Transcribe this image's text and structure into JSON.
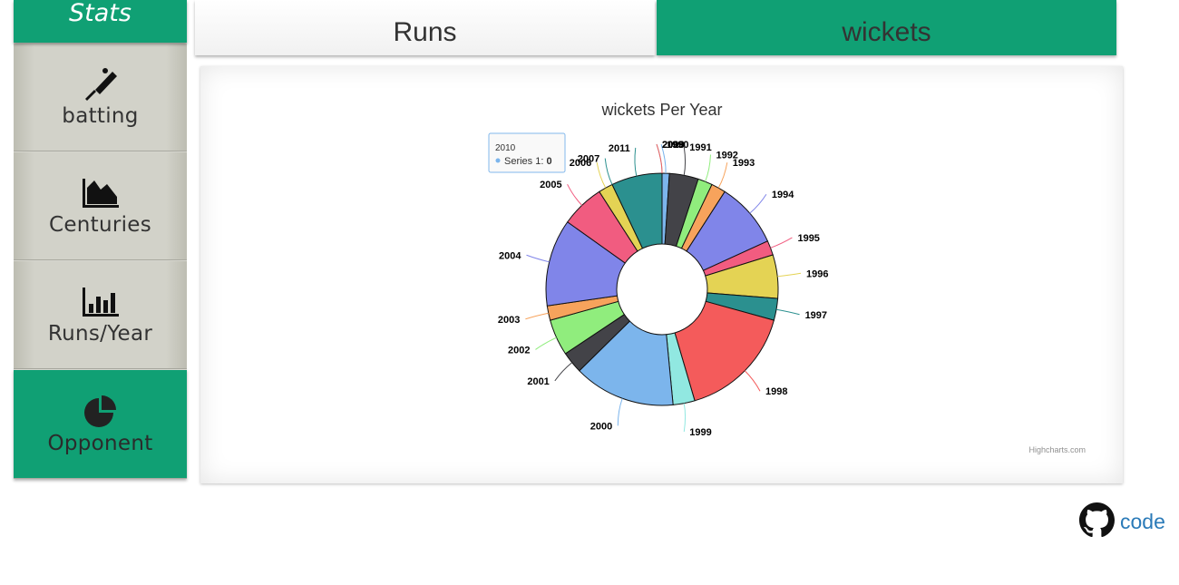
{
  "sidebar": {
    "title": "Stats",
    "items": [
      {
        "label": "batting",
        "icon": "cricket-bat-icon",
        "active": false
      },
      {
        "label": "Centuries",
        "icon": "area-chart-icon",
        "active": false
      },
      {
        "label": "Runs/Year",
        "icon": "bar-chart-icon",
        "active": false
      },
      {
        "label": "Opponent",
        "icon": "pie-chart-icon",
        "active": true
      }
    ]
  },
  "tabs": [
    {
      "label": "Runs",
      "active": false
    },
    {
      "label": "wickets",
      "active": true
    }
  ],
  "colors": {
    "accent": "#10a074"
  },
  "chart_data": {
    "type": "pie",
    "title": "wickets Per Year",
    "donut": true,
    "series_name": "Series 1",
    "credits": "Highcharts.com",
    "categories": [
      "1990",
      "1991",
      "1992",
      "1993",
      "1994",
      "1995",
      "1996",
      "1997",
      "1998",
      "1999",
      "2000",
      "2001",
      "2002",
      "2003",
      "2004",
      "2005",
      "2006",
      "2007",
      "2011",
      "2010",
      "2009",
      "2008"
    ],
    "values": [
      1,
      4,
      2,
      2,
      9,
      2,
      6,
      3,
      16,
      3,
      14,
      3,
      5,
      2,
      12,
      6,
      2,
      0,
      7,
      0,
      0,
      0
    ],
    "slice_colors": [
      "#7cb5ec",
      "#434348",
      "#90ed7d",
      "#f7a35c",
      "#8085e9",
      "#f15c80",
      "#e4d354",
      "#2b908f",
      "#f45b5b",
      "#91e8e1",
      "#7cb5ec",
      "#434348",
      "#90ed7d",
      "#f7a35c",
      "#8085e9",
      "#f15c80",
      "#e4d354",
      "#2b908f",
      "#2b908f",
      "#7cb5ec",
      "#91e8e1",
      "#f45b5b"
    ],
    "tooltip": {
      "category": "2010",
      "series": "Series 1",
      "value": "0"
    }
  },
  "footer": {
    "link_label": "code",
    "icon": "github-icon"
  }
}
